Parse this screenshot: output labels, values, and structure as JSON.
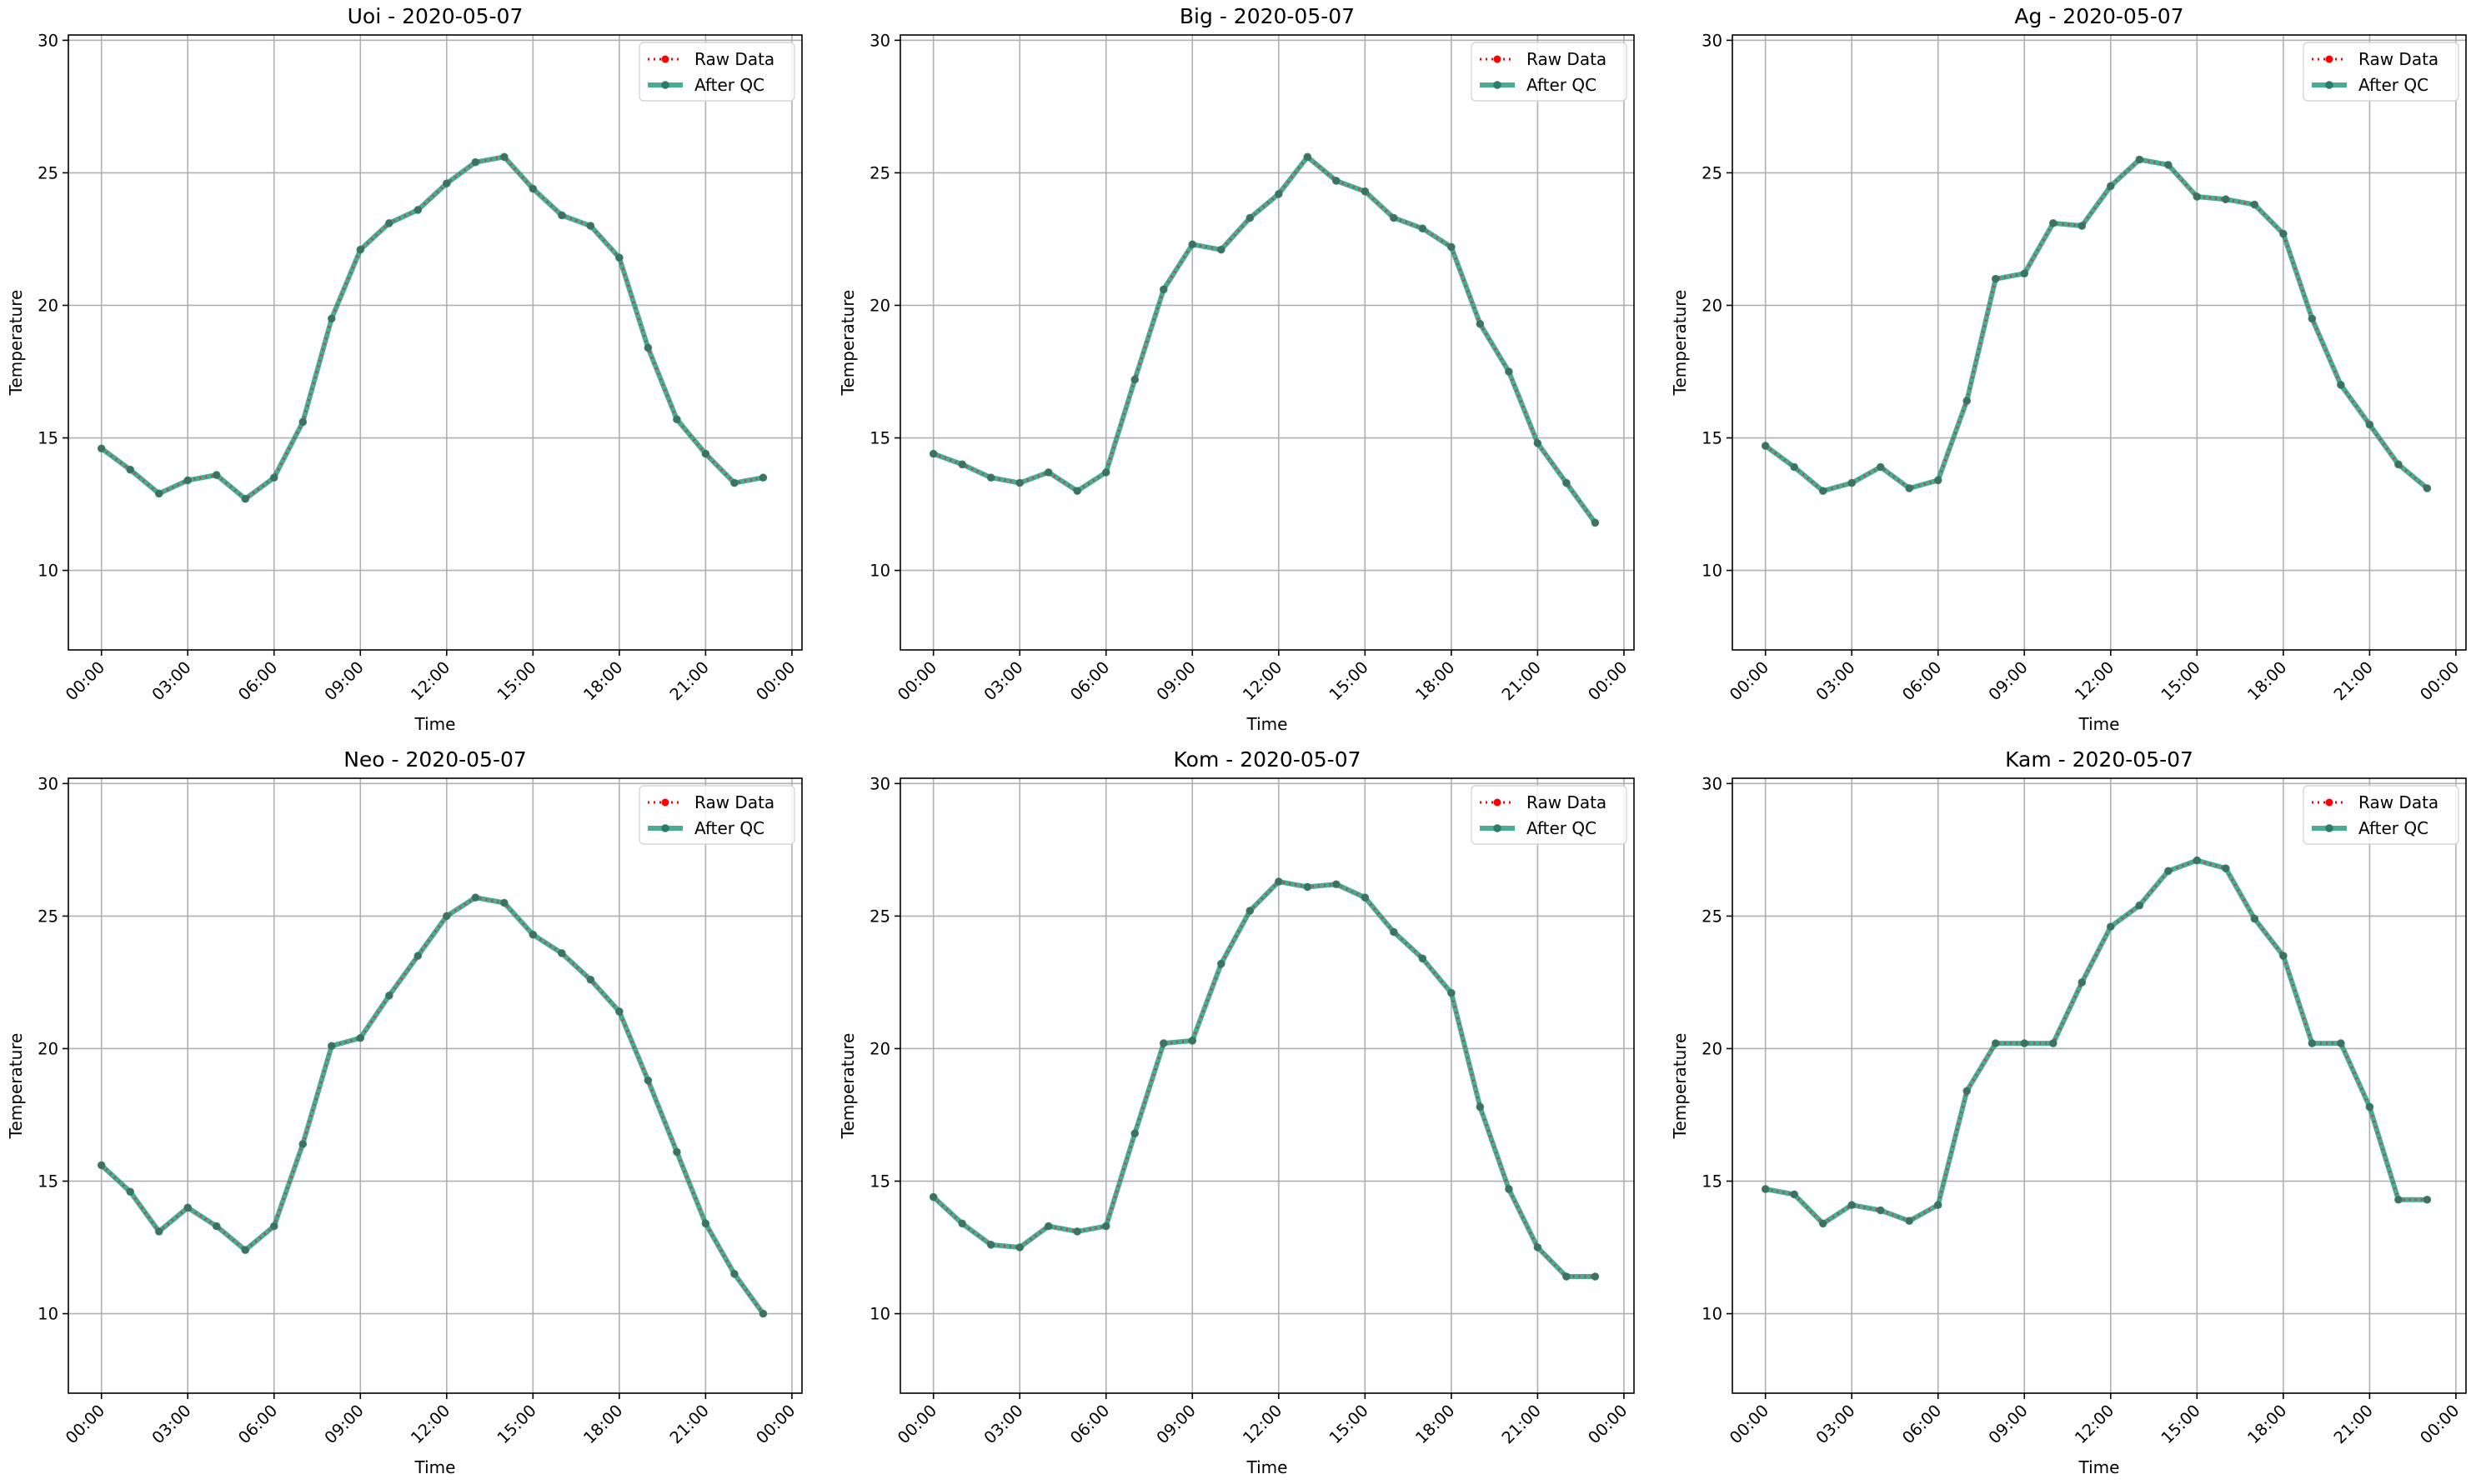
{
  "colors": {
    "raw": "#ff0000",
    "qc": "#2a9d7f",
    "qc_marker": "#2a7d6a",
    "grid": "#b0b0b0",
    "axes": "#000000"
  },
  "chart_data": [
    {
      "type": "line",
      "title": "Uoi - 2020-05-07",
      "xlabel": "Time",
      "ylabel": "Temperature",
      "x": [
        "00:00",
        "01:00",
        "02:00",
        "03:00",
        "04:00",
        "05:00",
        "06:00",
        "07:00",
        "08:00",
        "09:00",
        "10:00",
        "11:00",
        "12:00",
        "13:00",
        "14:00",
        "15:00",
        "16:00",
        "17:00",
        "18:00",
        "19:00",
        "20:00",
        "21:00",
        "22:00",
        "23:00"
      ],
      "xticks": [
        "00:00",
        "03:00",
        "06:00",
        "09:00",
        "12:00",
        "15:00",
        "18:00",
        "21:00",
        "00:00"
      ],
      "yticks": [
        10,
        15,
        20,
        25,
        30
      ],
      "ylim": [
        7,
        30.2
      ],
      "grid": true,
      "legend": "top-right",
      "series": [
        {
          "name": "Raw Data",
          "values": [
            14.6,
            13.8,
            12.9,
            13.4,
            13.6,
            12.7,
            13.5,
            15.6,
            19.5,
            22.1,
            23.1,
            23.6,
            24.6,
            25.4,
            25.6,
            24.4,
            23.4,
            23.0,
            21.8,
            18.4,
            15.7,
            14.4,
            13.3,
            13.5
          ]
        },
        {
          "name": "After QC",
          "values": [
            14.6,
            13.8,
            12.9,
            13.4,
            13.6,
            12.7,
            13.5,
            15.6,
            19.5,
            22.1,
            23.1,
            23.6,
            24.6,
            25.4,
            25.6,
            24.4,
            23.4,
            23.0,
            21.8,
            18.4,
            15.7,
            14.4,
            13.3,
            13.5
          ]
        }
      ]
    },
    {
      "type": "line",
      "title": "Big - 2020-05-07",
      "xlabel": "Time",
      "ylabel": "Temperature",
      "x": [
        "00:00",
        "01:00",
        "02:00",
        "03:00",
        "04:00",
        "05:00",
        "06:00",
        "07:00",
        "08:00",
        "09:00",
        "10:00",
        "11:00",
        "12:00",
        "13:00",
        "14:00",
        "15:00",
        "16:00",
        "17:00",
        "18:00",
        "19:00",
        "20:00",
        "21:00",
        "22:00",
        "23:00"
      ],
      "xticks": [
        "00:00",
        "03:00",
        "06:00",
        "09:00",
        "12:00",
        "15:00",
        "18:00",
        "21:00",
        "00:00"
      ],
      "yticks": [
        10,
        15,
        20,
        25,
        30
      ],
      "ylim": [
        7,
        30.2
      ],
      "grid": true,
      "legend": "top-right",
      "series": [
        {
          "name": "Raw Data",
          "values": [
            14.4,
            14.0,
            13.5,
            13.3,
            13.7,
            13.0,
            13.7,
            17.2,
            20.6,
            22.3,
            22.1,
            23.3,
            24.2,
            25.6,
            24.7,
            24.3,
            23.3,
            22.9,
            22.2,
            19.3,
            17.5,
            14.8,
            13.3,
            11.8
          ]
        },
        {
          "name": "After QC",
          "values": [
            14.4,
            14.0,
            13.5,
            13.3,
            13.7,
            13.0,
            13.7,
            17.2,
            20.6,
            22.3,
            22.1,
            23.3,
            24.2,
            25.6,
            24.7,
            24.3,
            23.3,
            22.9,
            22.2,
            19.3,
            17.5,
            14.8,
            13.3,
            11.8
          ]
        }
      ]
    },
    {
      "type": "line",
      "title": "Ag - 2020-05-07",
      "xlabel": "Time",
      "ylabel": "Temperature",
      "x": [
        "00:00",
        "01:00",
        "02:00",
        "03:00",
        "04:00",
        "05:00",
        "06:00",
        "07:00",
        "08:00",
        "09:00",
        "10:00",
        "11:00",
        "12:00",
        "13:00",
        "14:00",
        "15:00",
        "16:00",
        "17:00",
        "18:00",
        "19:00",
        "20:00",
        "21:00",
        "22:00",
        "23:00"
      ],
      "xticks": [
        "00:00",
        "03:00",
        "06:00",
        "09:00",
        "12:00",
        "15:00",
        "18:00",
        "21:00",
        "00:00"
      ],
      "yticks": [
        10,
        15,
        20,
        25,
        30
      ],
      "ylim": [
        7,
        30.2
      ],
      "grid": true,
      "legend": "top-right",
      "series": [
        {
          "name": "Raw Data",
          "values": [
            14.7,
            13.9,
            13.0,
            13.3,
            13.9,
            13.1,
            13.4,
            16.4,
            21.0,
            21.2,
            23.1,
            23.0,
            24.5,
            25.5,
            25.3,
            24.1,
            24.0,
            23.8,
            22.7,
            19.5,
            17.0,
            15.5,
            14.0,
            13.1
          ]
        },
        {
          "name": "After QC",
          "values": [
            14.7,
            13.9,
            13.0,
            13.3,
            13.9,
            13.1,
            13.4,
            16.4,
            21.0,
            21.2,
            23.1,
            23.0,
            24.5,
            25.5,
            25.3,
            24.1,
            24.0,
            23.8,
            22.7,
            19.5,
            17.0,
            15.5,
            14.0,
            13.1
          ]
        }
      ]
    },
    {
      "type": "line",
      "title": "Neo - 2020-05-07",
      "xlabel": "Time",
      "ylabel": "Temperature",
      "x": [
        "00:00",
        "01:00",
        "02:00",
        "03:00",
        "04:00",
        "05:00",
        "06:00",
        "07:00",
        "08:00",
        "09:00",
        "10:00",
        "11:00",
        "12:00",
        "13:00",
        "14:00",
        "15:00",
        "16:00",
        "17:00",
        "18:00",
        "19:00",
        "20:00",
        "21:00",
        "22:00",
        "23:00"
      ],
      "xticks": [
        "00:00",
        "03:00",
        "06:00",
        "09:00",
        "12:00",
        "15:00",
        "18:00",
        "21:00",
        "00:00"
      ],
      "yticks": [
        10,
        15,
        20,
        25,
        30
      ],
      "ylim": [
        7,
        30.2
      ],
      "grid": true,
      "legend": "top-right",
      "series": [
        {
          "name": "Raw Data",
          "values": [
            15.6,
            14.6,
            13.1,
            14.0,
            13.3,
            12.4,
            13.3,
            16.4,
            20.1,
            20.4,
            22.0,
            23.5,
            25.0,
            25.7,
            25.5,
            24.3,
            23.6,
            22.6,
            21.4,
            18.8,
            16.1,
            13.4,
            11.5,
            10.0
          ]
        },
        {
          "name": "After QC",
          "values": [
            15.6,
            14.6,
            13.1,
            14.0,
            13.3,
            12.4,
            13.3,
            16.4,
            20.1,
            20.4,
            22.0,
            23.5,
            25.0,
            25.7,
            25.5,
            24.3,
            23.6,
            22.6,
            21.4,
            18.8,
            16.1,
            13.4,
            11.5,
            10.0
          ]
        }
      ]
    },
    {
      "type": "line",
      "title": "Kom - 2020-05-07",
      "xlabel": "Time",
      "ylabel": "Temperature",
      "x": [
        "00:00",
        "01:00",
        "02:00",
        "03:00",
        "04:00",
        "05:00",
        "06:00",
        "07:00",
        "08:00",
        "09:00",
        "10:00",
        "11:00",
        "12:00",
        "13:00",
        "14:00",
        "15:00",
        "16:00",
        "17:00",
        "18:00",
        "19:00",
        "20:00",
        "21:00",
        "22:00",
        "23:00"
      ],
      "xticks": [
        "00:00",
        "03:00",
        "06:00",
        "09:00",
        "12:00",
        "15:00",
        "18:00",
        "21:00",
        "00:00"
      ],
      "yticks": [
        10,
        15,
        20,
        25,
        30
      ],
      "ylim": [
        7,
        30.2
      ],
      "grid": true,
      "legend": "top-right",
      "series": [
        {
          "name": "Raw Data",
          "values": [
            14.4,
            13.4,
            12.6,
            12.5,
            13.3,
            13.1,
            13.3,
            16.8,
            20.2,
            20.3,
            23.2,
            25.2,
            26.3,
            26.1,
            26.2,
            25.7,
            24.4,
            23.4,
            22.1,
            17.8,
            14.7,
            12.5,
            11.4,
            11.4
          ]
        },
        {
          "name": "After QC",
          "values": [
            14.4,
            13.4,
            12.6,
            12.5,
            13.3,
            13.1,
            13.3,
            16.8,
            20.2,
            20.3,
            23.2,
            25.2,
            26.3,
            26.1,
            26.2,
            25.7,
            24.4,
            23.4,
            22.1,
            17.8,
            14.7,
            12.5,
            11.4,
            11.4
          ]
        }
      ]
    },
    {
      "type": "line",
      "title": "Kam - 2020-05-07",
      "xlabel": "Time",
      "ylabel": "Temperature",
      "x": [
        "00:00",
        "01:00",
        "02:00",
        "03:00",
        "04:00",
        "05:00",
        "06:00",
        "07:00",
        "08:00",
        "09:00",
        "10:00",
        "11:00",
        "12:00",
        "13:00",
        "14:00",
        "15:00",
        "16:00",
        "17:00",
        "18:00",
        "19:00",
        "20:00",
        "21:00",
        "22:00",
        "23:00"
      ],
      "xticks": [
        "00:00",
        "03:00",
        "06:00",
        "09:00",
        "12:00",
        "15:00",
        "18:00",
        "21:00",
        "00:00"
      ],
      "yticks": [
        10,
        15,
        20,
        25,
        30
      ],
      "ylim": [
        7,
        30.2
      ],
      "grid": true,
      "legend": "top-right",
      "series": [
        {
          "name": "Raw Data",
          "values": [
            14.7,
            14.5,
            13.4,
            14.1,
            13.9,
            13.5,
            14.1,
            18.4,
            20.2,
            20.2,
            20.2,
            22.5,
            24.6,
            25.4,
            26.7,
            27.1,
            26.8,
            24.9,
            23.5,
            20.2,
            20.2,
            17.8,
            14.3,
            14.3
          ]
        },
        {
          "name": "After QC",
          "values": [
            14.7,
            14.5,
            13.4,
            14.1,
            13.9,
            13.5,
            14.1,
            18.4,
            20.2,
            20.2,
            20.2,
            22.5,
            24.6,
            25.4,
            26.7,
            27.1,
            26.8,
            24.9,
            23.5,
            20.2,
            20.2,
            17.8,
            14.3,
            14.3
          ]
        }
      ]
    }
  ]
}
